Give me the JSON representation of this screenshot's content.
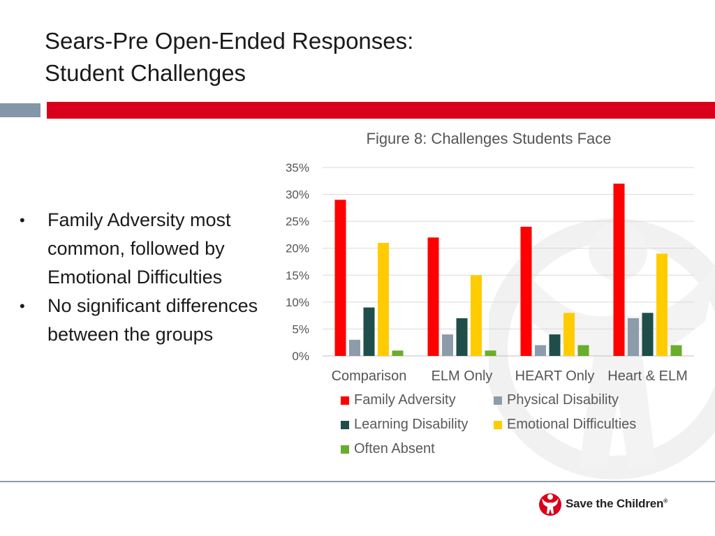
{
  "slide": {
    "title_line1": "Sears-Pre Open-Ended Responses:",
    "title_line2": "Student Challenges",
    "bullets": [
      "Family Adversity most common, followed by Emotional Difficulties",
      "No significant differences between the groups"
    ],
    "logo_text": "Save the Children",
    "colors": {
      "brand_red": "#d9001b",
      "accent_gray": "#8497a9"
    }
  },
  "chart_data": {
    "type": "bar",
    "title": "Figure 8: Challenges Students Face",
    "categories": [
      "Comparison",
      "ELM Only",
      "HEART Only",
      "Heart & ELM"
    ],
    "series": [
      {
        "name": "Family Adversity",
        "color": "#ff0000",
        "values": [
          29,
          22,
          24,
          32
        ]
      },
      {
        "name": "Physical Disability",
        "color": "#8c9cab",
        "values": [
          3,
          4,
          2,
          7
        ]
      },
      {
        "name": "Learning Disability",
        "color": "#1f4e4a",
        "values": [
          9,
          7,
          4,
          8
        ]
      },
      {
        "name": "Emotional Difficulties",
        "color": "#ffcc00",
        "values": [
          21,
          15,
          8,
          19
        ]
      },
      {
        "name": "Often Absent",
        "color": "#6aad2b",
        "values": [
          1,
          1,
          2,
          2
        ]
      }
    ],
    "ylim": [
      0,
      35
    ],
    "yticks": [
      "0%",
      "5%",
      "10%",
      "15%",
      "20%",
      "25%",
      "30%",
      "35%"
    ],
    "xlabel": "",
    "ylabel": "",
    "grid": true,
    "legend_position": "bottom"
  }
}
